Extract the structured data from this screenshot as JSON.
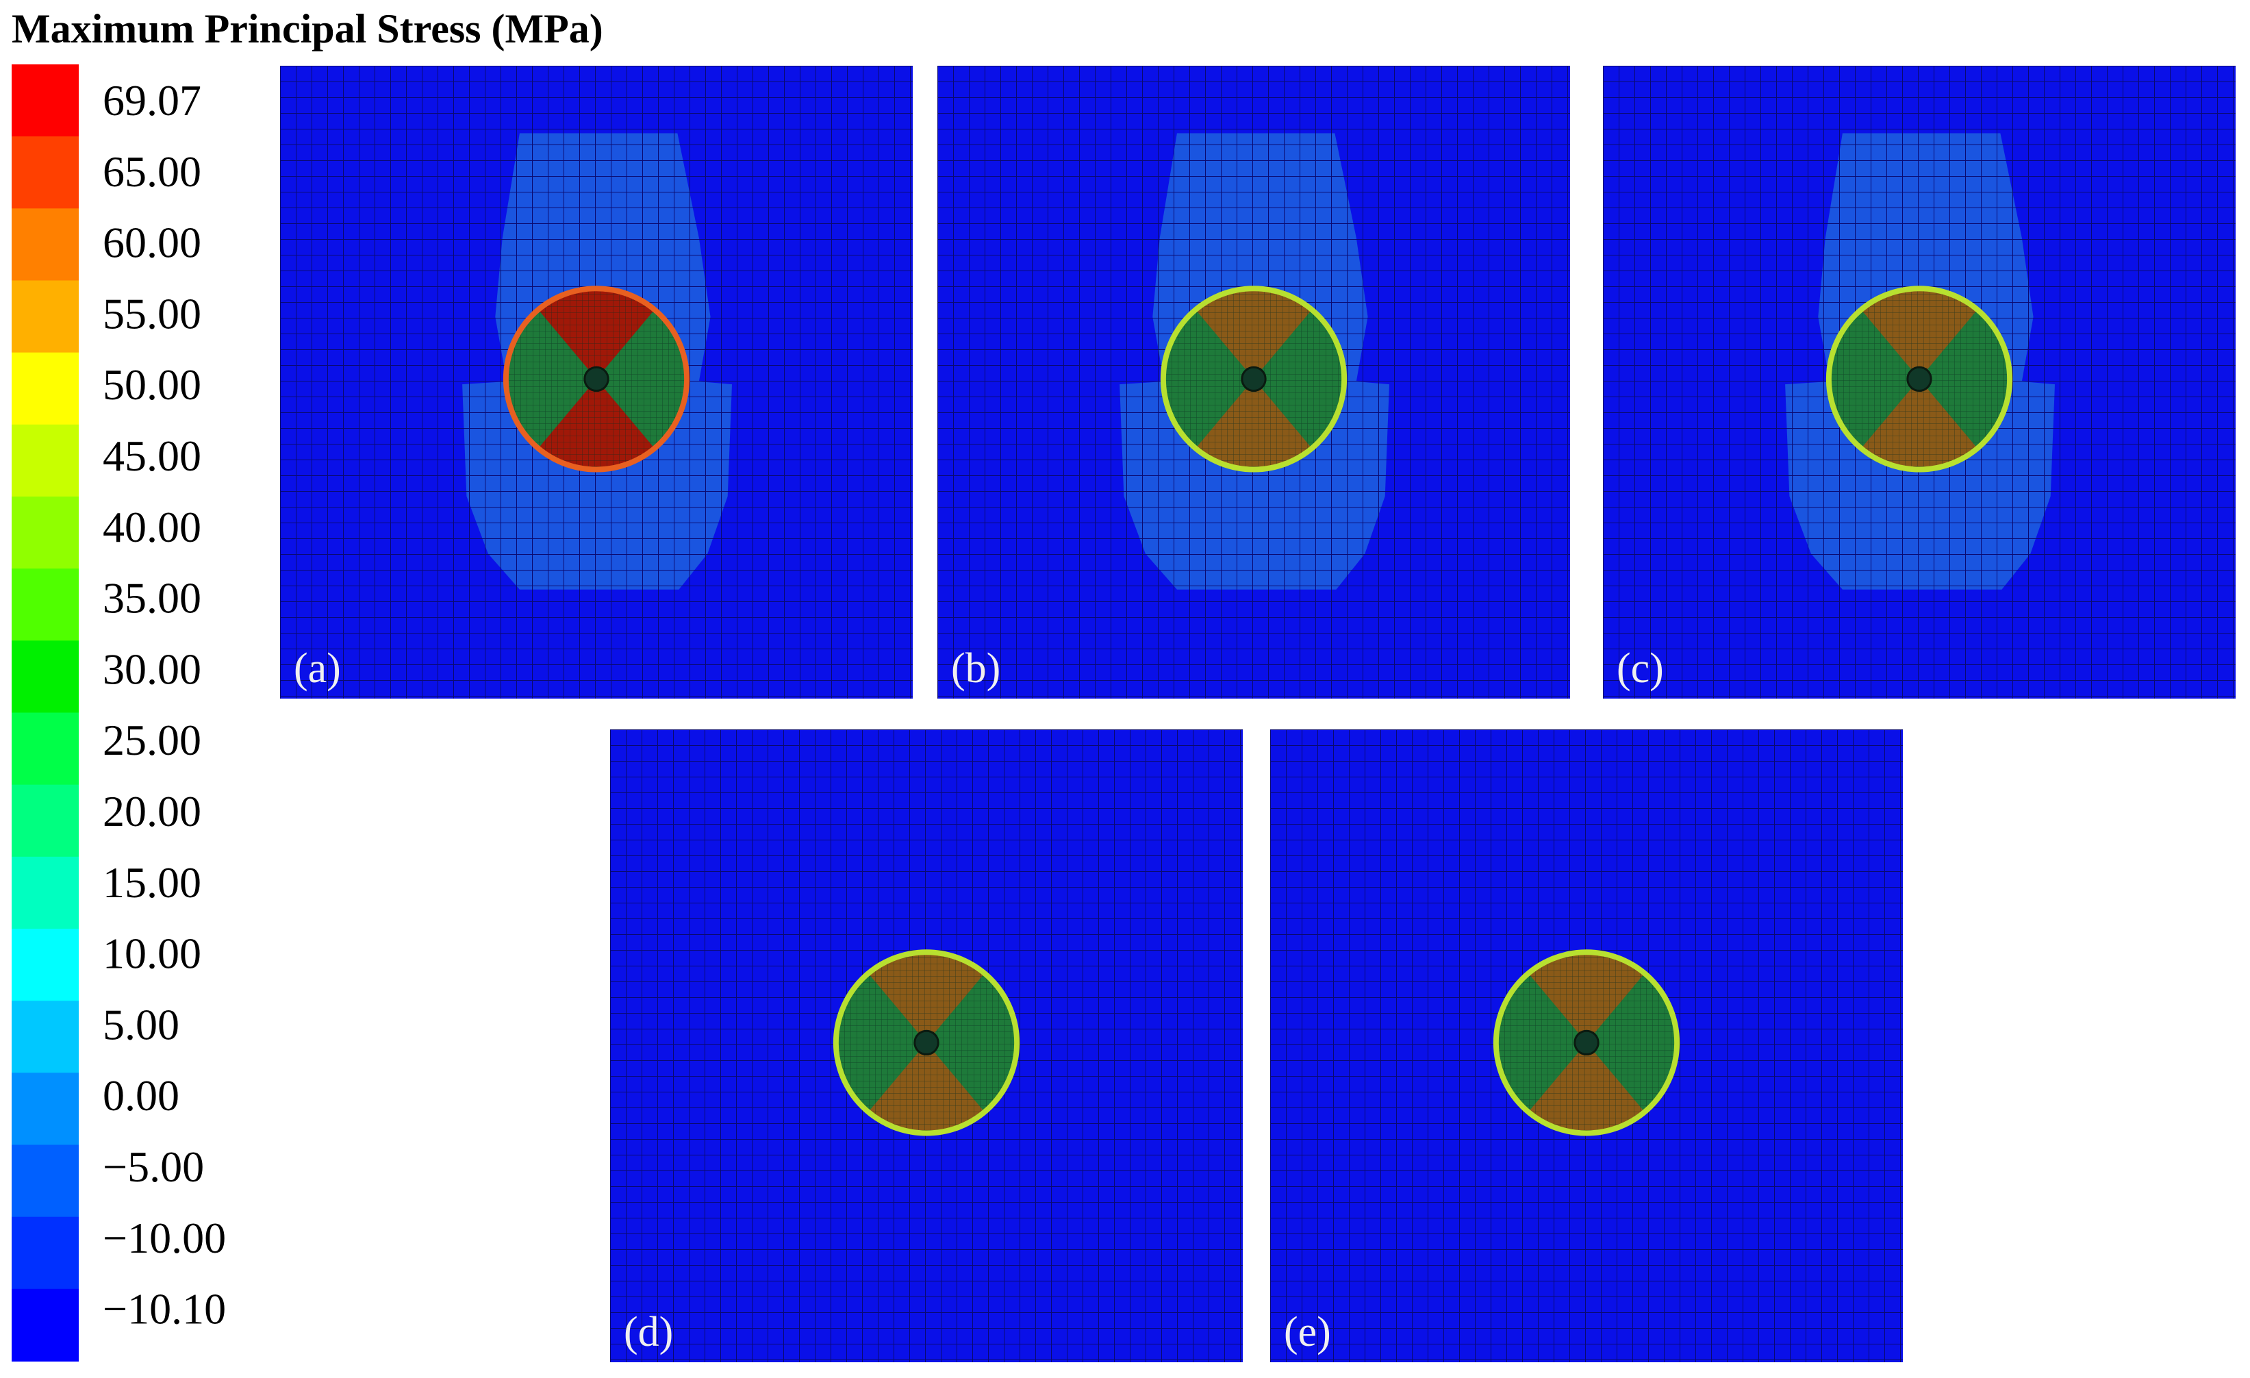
{
  "header": {
    "title": "Maximum Principal Stress (MPa)"
  },
  "legend": {
    "labels": [
      "69.07",
      "65.00",
      "60.00",
      "55.00",
      "50.00",
      "45.00",
      "40.00",
      "35.00",
      "30.00",
      "25.00",
      "20.00",
      "15.00",
      "10.00",
      "5.00",
      "0.00",
      "−5.00",
      "−10.00",
      "−10.10"
    ],
    "colors": [
      "#ff0000",
      "#ff4000",
      "#ff8000",
      "#ffb000",
      "#ffff00",
      "#c8ff00",
      "#90ff00",
      "#50ff00",
      "#00f000",
      "#00ff48",
      "#00ff80",
      "#00ffc0",
      "#00ffff",
      "#00c8ff",
      "#0090ff",
      "#0060ff",
      "#0030ff",
      "#0000ff"
    ]
  },
  "panels": [
    {
      "label": "(a)"
    },
    {
      "label": "(b)"
    },
    {
      "label": "(c)"
    },
    {
      "label": "(d)"
    },
    {
      "label": "(e)"
    }
  ]
}
